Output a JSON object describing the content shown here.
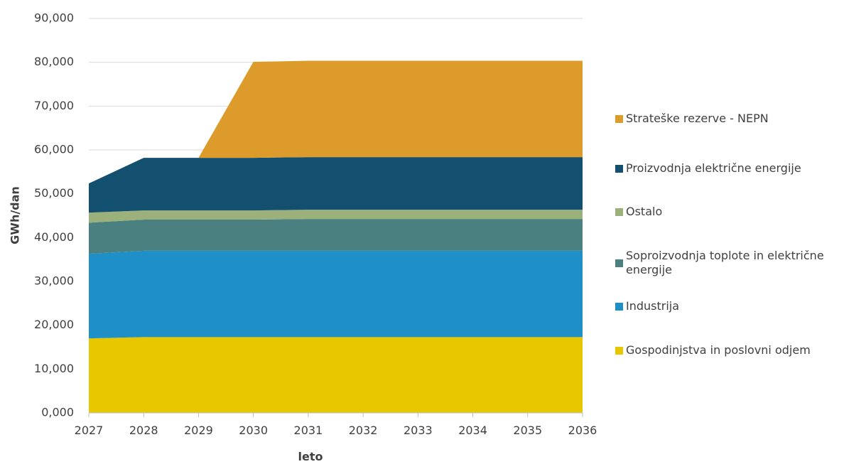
{
  "chart_data": {
    "type": "stacked_area",
    "x_label": "leto",
    "y_label": "GWh/dan",
    "categories": [
      "2027",
      "2028",
      "2029",
      "2030",
      "2031",
      "2032",
      "2033",
      "2034",
      "2035",
      "2036"
    ],
    "series": [
      {
        "name": "Gospodinjstva in poslovni odjem",
        "color": "#e6c700",
        "values": [
          17000,
          17300,
          17300,
          17300,
          17300,
          17300,
          17300,
          17300,
          17300,
          17300
        ]
      },
      {
        "name": "Industrija",
        "color": "#1f8fc8",
        "values": [
          19300,
          19700,
          19700,
          19700,
          19700,
          19700,
          19700,
          19700,
          19700,
          19700
        ]
      },
      {
        "name": "Soproizvodnja toplote in električne energije",
        "color": "#4a807f",
        "values": [
          7100,
          7100,
          7100,
          7100,
          7250,
          7250,
          7250,
          7250,
          7250,
          7250
        ]
      },
      {
        "name": "Ostalo",
        "color": "#9bb07a",
        "values": [
          2300,
          2100,
          2100,
          2100,
          2100,
          2100,
          2100,
          2100,
          2100,
          2100
        ]
      },
      {
        "name": "Proizvodnja električne energije",
        "color": "#134f6e",
        "values": [
          6650,
          12000,
          12000,
          12000,
          12000,
          12000,
          12000,
          12000,
          12000,
          12000
        ]
      },
      {
        "name": "Strateške rezerve - NEPN",
        "color": "#dc9b2a",
        "values": [
          0,
          0,
          0,
          21900,
          22000,
          22000,
          22000,
          22000,
          22000,
          22000
        ]
      }
    ],
    "ylim": [
      0,
      90000
    ],
    "yticks": [
      {
        "value": 0,
        "label": "0,000"
      },
      {
        "value": 10000,
        "label": "10,000"
      },
      {
        "value": 20000,
        "label": "20,000"
      },
      {
        "value": 30000,
        "label": "30,000"
      },
      {
        "value": 40000,
        "label": "40,000"
      },
      {
        "value": 50000,
        "label": "50,000"
      },
      {
        "value": 60000,
        "label": "60,000"
      },
      {
        "value": 70000,
        "label": "70,000"
      },
      {
        "value": 80000,
        "label": "80,000"
      },
      {
        "value": 90000,
        "label": "90,000"
      }
    ],
    "grid": true,
    "legend": "right"
  }
}
